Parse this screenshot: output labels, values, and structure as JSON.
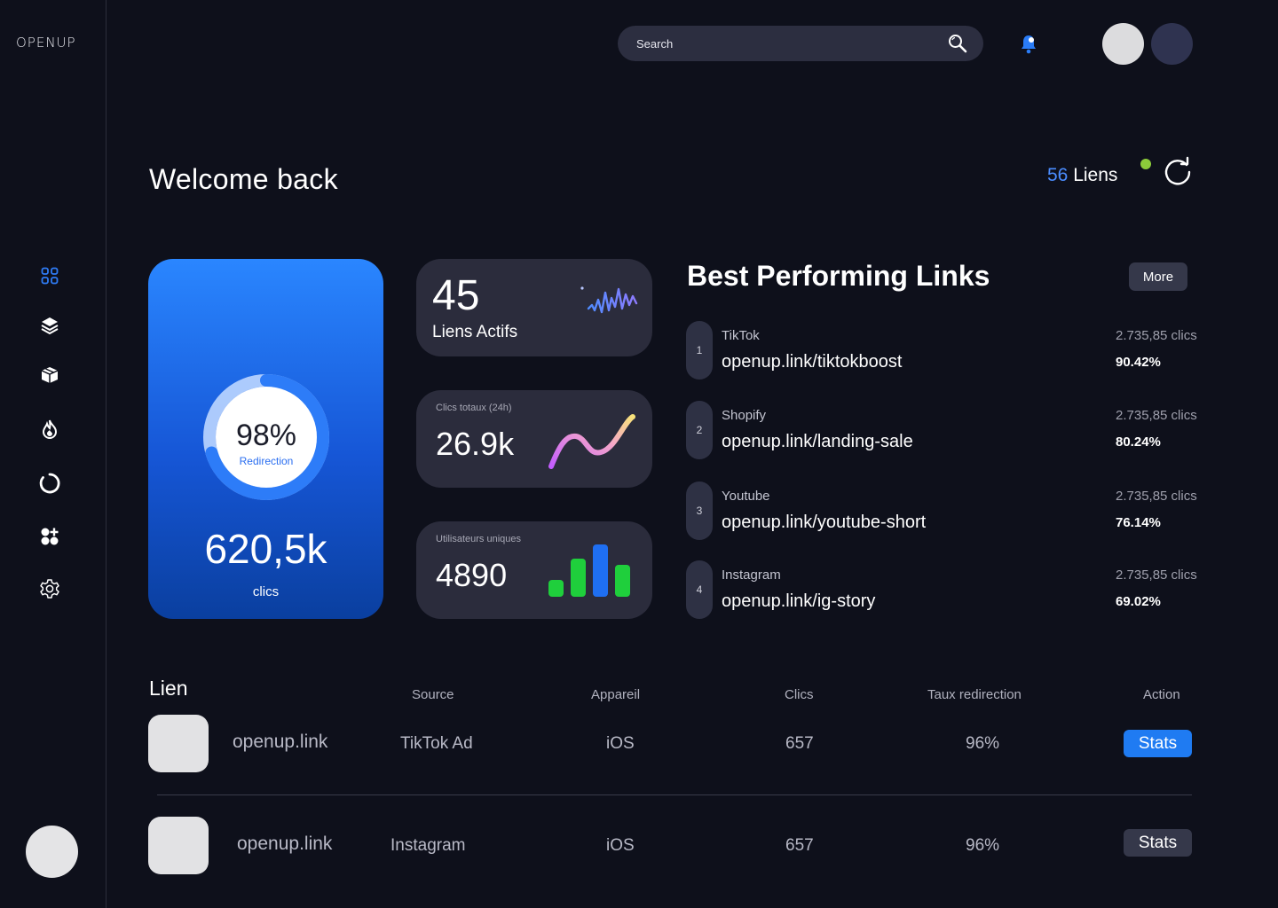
{
  "app": {
    "logo_text": "OPENUP"
  },
  "sidebar": {
    "items": [
      {
        "name": "dashboard",
        "icon": "grid-icon",
        "active": true
      },
      {
        "name": "layers",
        "icon": "layers-icon"
      },
      {
        "name": "packages",
        "icon": "package-icon"
      },
      {
        "name": "trending",
        "icon": "flame-icon"
      },
      {
        "name": "loading",
        "icon": "circle-icon"
      },
      {
        "name": "add-widget",
        "icon": "widget-add-icon"
      },
      {
        "name": "settings",
        "icon": "gear-icon"
      }
    ]
  },
  "search": {
    "placeholder": "Search"
  },
  "header": {
    "welcome": "Welcome back",
    "links_count": "56",
    "links_label": " Liens"
  },
  "redirect_card": {
    "percent": "98%",
    "percent_value": 0.98,
    "percent_label": "Redirection",
    "total": "620,5k",
    "total_label": "clics"
  },
  "stats": {
    "active_links": {
      "value": "45",
      "label": "Liens Actifs"
    },
    "total_clicks": {
      "caption": "Clics totaux (24h)",
      "value": "26.9k"
    },
    "unique_users": {
      "caption": "Utilisateurs uniques",
      "value": "4890"
    }
  },
  "best_links": {
    "title": "Best Performing Links",
    "more_label": "More",
    "items": [
      {
        "rank": "1",
        "source": "TikTok",
        "url": "openup.link/tiktokboost",
        "clicks": "2.735,85 clics",
        "pct": "90.42%"
      },
      {
        "rank": "2",
        "source": "Shopify",
        "url": "openup.link/landing-sale",
        "clicks": "2.735,85 clics",
        "pct": "80.24%"
      },
      {
        "rank": "3",
        "source": "Youtube",
        "url": "openup.link/youtube-short",
        "clicks": "2.735,85 clics",
        "pct": "76.14%"
      },
      {
        "rank": "4",
        "source": "Instagram",
        "url": "openup.link/ig-story",
        "clicks": "2.735,85 clics",
        "pct": "69.02%"
      }
    ]
  },
  "table": {
    "headers": {
      "link": "Lien",
      "source": "Source",
      "device": "Appareil",
      "clicks": "Clics",
      "rate": "Taux redirection",
      "action": "Action"
    },
    "rows": [
      {
        "link": "openup.link",
        "source": "TikTok Ad",
        "device": "iOS",
        "clicks": "657",
        "rate": "96%",
        "action": "Stats"
      },
      {
        "link": "openup.link",
        "source": "Instagram",
        "device": "iOS",
        "clicks": "657",
        "rate": "96%",
        "action": "Stats"
      }
    ]
  },
  "colors": {
    "background": "#0e101b",
    "accent_blue": "#1f7bf2",
    "card": "#2b2c3c",
    "status_green": "#8ccc3a",
    "bar_green": "#1fcf3c"
  }
}
